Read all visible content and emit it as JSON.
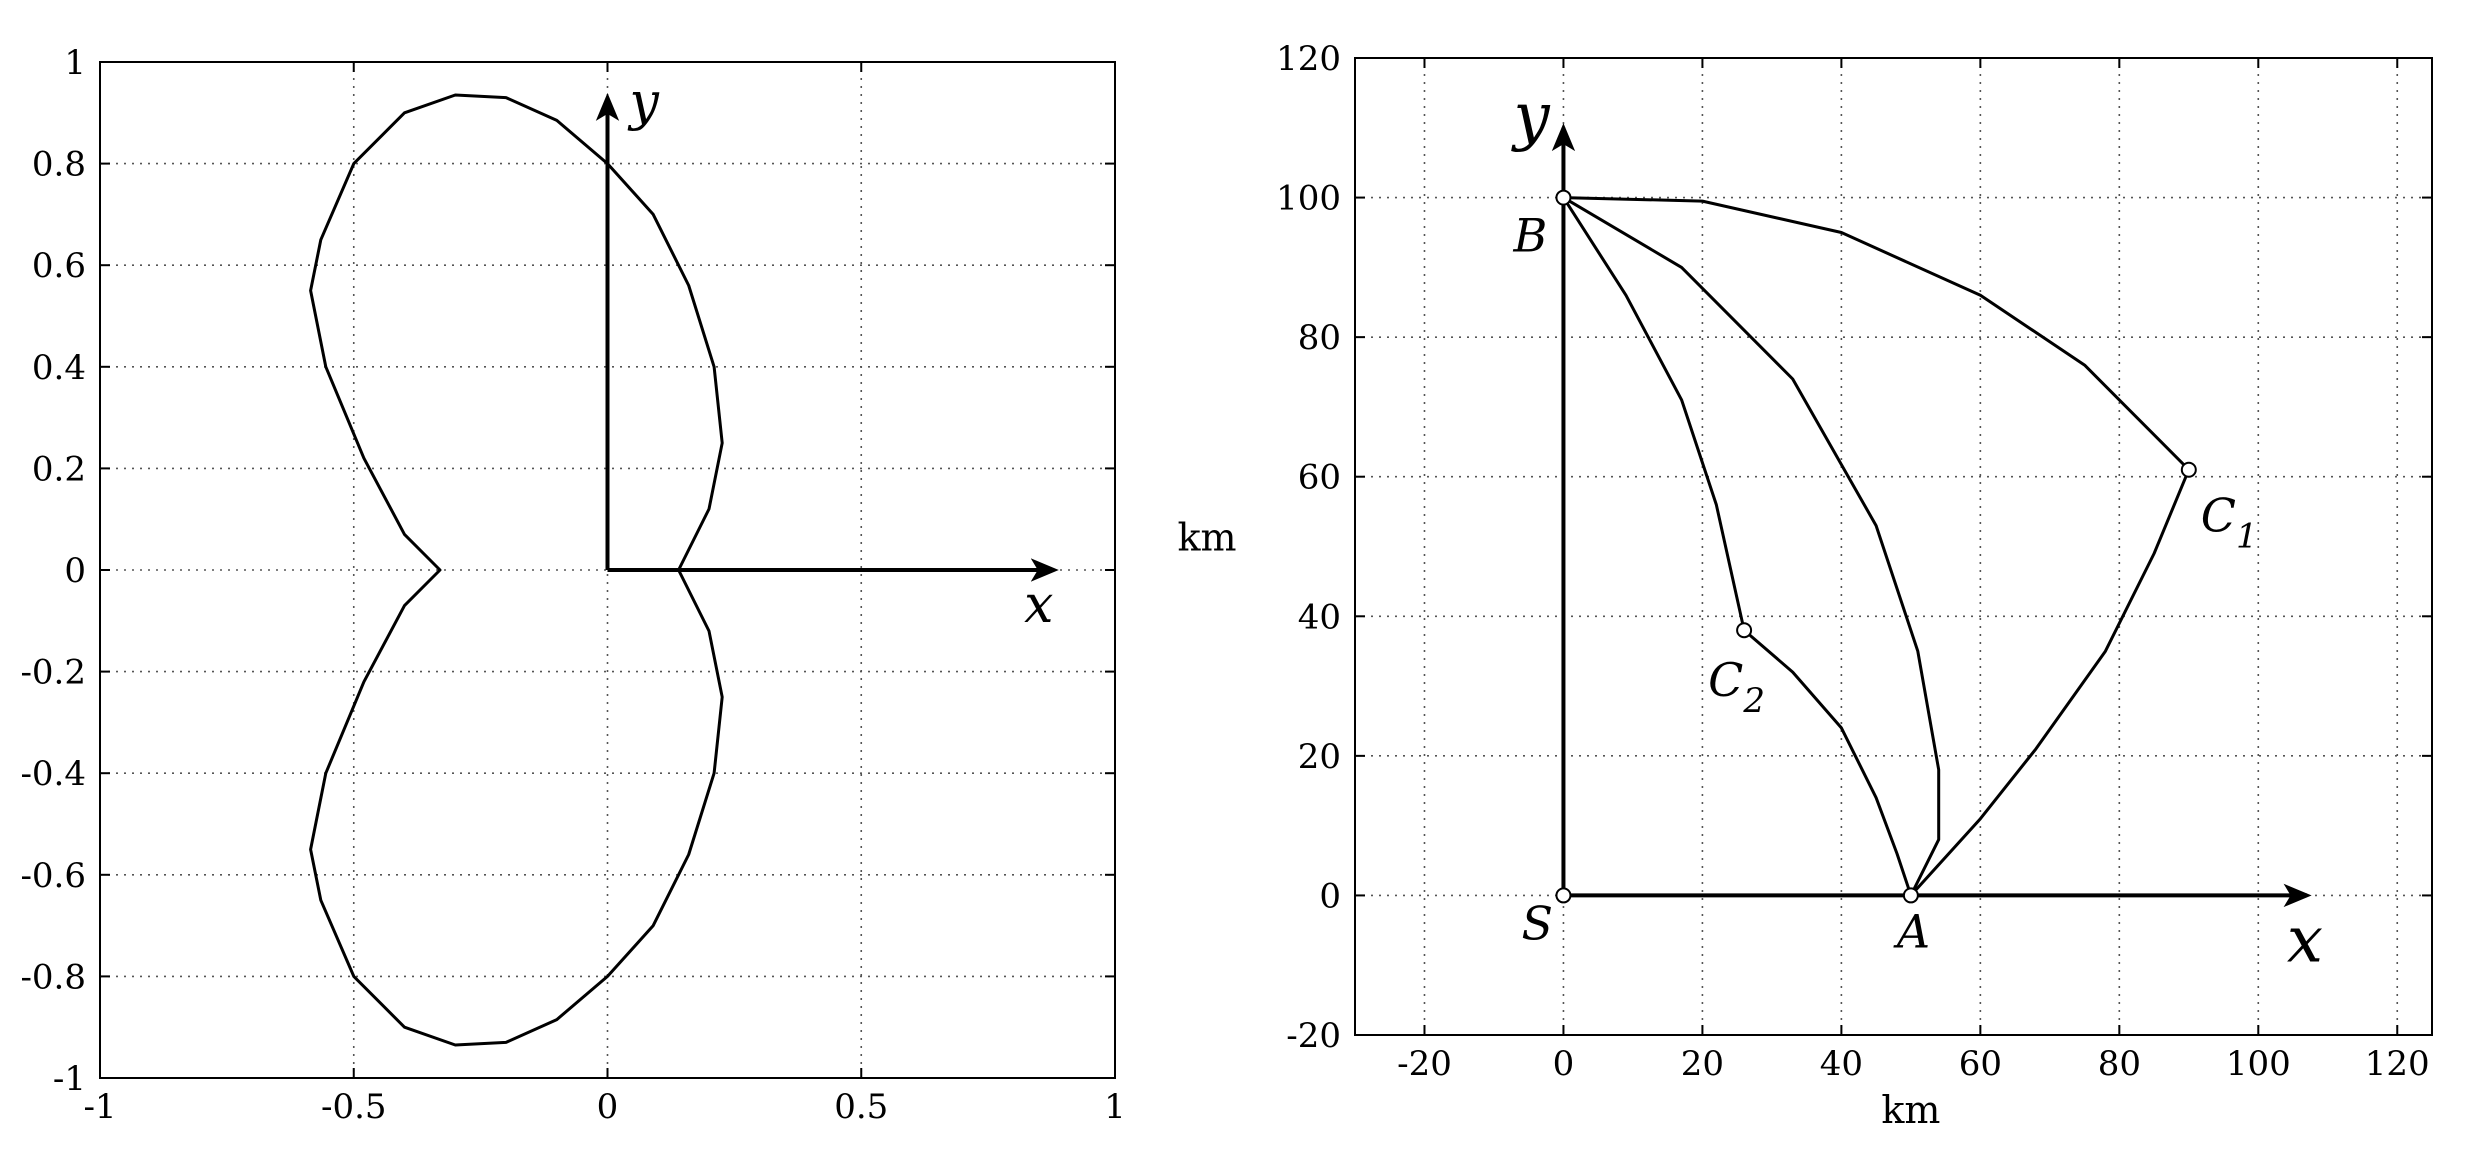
{
  "chart_data": [
    {
      "type": "line",
      "title": "",
      "xlabel": "",
      "ylabel": "",
      "xlim": [
        -1,
        1
      ],
      "ylim": [
        -1,
        1
      ],
      "grid": true,
      "x_ticks": [
        "-1",
        "-0.5",
        "0",
        "0.5",
        "1"
      ],
      "y_ticks": [
        "1",
        "0.8",
        "0.6",
        "0.4",
        "0.2",
        "0",
        "-0.2",
        "-0.4",
        "-0.6",
        "-0.8",
        "-1"
      ],
      "axis_arrows": {
        "x_label": "x",
        "y_label": "y",
        "x_end": 0.88,
        "y_end": 0.93
      },
      "series": [
        {
          "values": [
            [
              0.14,
              0.0
            ],
            [
              0.2,
              0.12
            ],
            [
              0.226,
              0.25
            ],
            [
              0.21,
              0.4
            ],
            [
              0.16,
              0.56
            ],
            [
              0.09,
              0.7
            ],
            [
              0.0,
              0.8
            ],
            [
              -0.1,
              0.885
            ],
            [
              -0.2,
              0.93
            ],
            [
              -0.3,
              0.935
            ],
            [
              -0.4,
              0.9
            ],
            [
              -0.5,
              0.8
            ],
            [
              -0.565,
              0.65
            ],
            [
              -0.585,
              0.55
            ],
            [
              -0.555,
              0.4
            ],
            [
              -0.48,
              0.22
            ],
            [
              -0.4,
              0.07
            ],
            [
              -0.33,
              0.0
            ],
            [
              -0.4,
              -0.07
            ],
            [
              -0.48,
              -0.22
            ],
            [
              -0.555,
              -0.4
            ],
            [
              -0.585,
              -0.55
            ],
            [
              -0.565,
              -0.65
            ],
            [
              -0.5,
              -0.8
            ],
            [
              -0.4,
              -0.9
            ],
            [
              -0.3,
              -0.935
            ],
            [
              -0.2,
              -0.93
            ],
            [
              -0.1,
              -0.885
            ],
            [
              0.0,
              -0.8
            ],
            [
              0.09,
              -0.7
            ],
            [
              0.16,
              -0.56
            ],
            [
              0.21,
              -0.4
            ],
            [
              0.226,
              -0.25
            ],
            [
              0.2,
              -0.12
            ],
            [
              0.14,
              0.0
            ]
          ]
        }
      ]
    },
    {
      "type": "line",
      "title": "",
      "xlabel": "km",
      "ylabel": "km",
      "xlim": [
        -30,
        125
      ],
      "ylim": [
        -20,
        120
      ],
      "grid": true,
      "x_ticks": [
        "-20",
        "0",
        "20",
        "40",
        "60",
        "80",
        "100",
        "120"
      ],
      "y_ticks": [
        "120",
        "100",
        "80",
        "60",
        "40",
        "20",
        "0",
        "-20"
      ],
      "axis_arrows": {
        "x_label": "x",
        "y_label": "y",
        "x_end": 107,
        "y_end": 110
      },
      "points": [
        {
          "label": "S",
          "x": 0,
          "y": 0
        },
        {
          "label": "A",
          "x": 50,
          "y": 0
        },
        {
          "label": "B",
          "x": 0,
          "y": 100
        },
        {
          "label": "C",
          "subscript": "1",
          "x": 90,
          "y": 61
        },
        {
          "label": "C",
          "subscript": "2",
          "x": 26,
          "y": 38
        }
      ],
      "series": [
        {
          "values": [
            [
              0,
              100
            ],
            [
              20,
              99.5
            ],
            [
              40,
              95
            ],
            [
              60,
              86
            ],
            [
              75,
              76
            ],
            [
              90,
              61
            ]
          ]
        },
        {
          "values": [
            [
              90,
              61
            ],
            [
              85,
              49
            ],
            [
              78,
              35
            ],
            [
              68,
              21
            ],
            [
              60,
              11
            ],
            [
              50,
              0
            ]
          ]
        },
        {
          "values": [
            [
              0,
              100
            ],
            [
              17,
              90
            ],
            [
              33,
              74
            ],
            [
              45,
              53
            ],
            [
              51,
              35
            ],
            [
              54,
              18
            ],
            [
              54,
              8
            ],
            [
              50,
              0
            ]
          ]
        },
        {
          "values": [
            [
              0,
              100
            ],
            [
              9,
              86
            ],
            [
              17,
              71
            ],
            [
              22,
              56
            ],
            [
              26,
              38
            ]
          ]
        },
        {
          "values": [
            [
              26,
              38
            ],
            [
              33,
              32
            ],
            [
              40,
              24
            ],
            [
              45,
              14
            ],
            [
              48,
              6
            ],
            [
              50,
              0
            ]
          ]
        },
        {
          "values": [
            [
              0,
              0
            ],
            [
              50,
              0
            ]
          ]
        },
        {
          "values": [
            [
              0,
              0
            ],
            [
              0,
              100
            ]
          ]
        }
      ]
    }
  ]
}
